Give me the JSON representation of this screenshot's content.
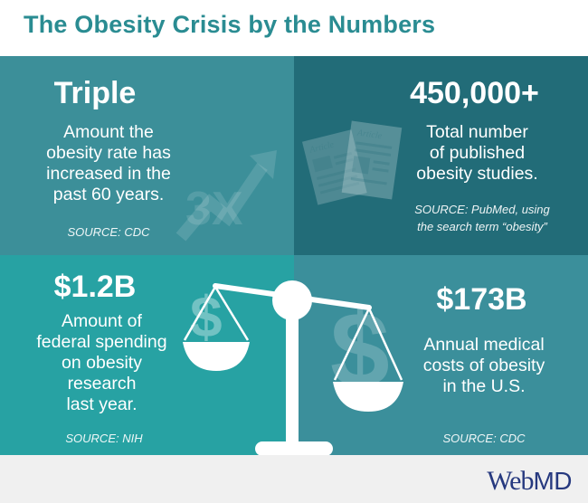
{
  "title": "The Obesity Crisis by the Numbers",
  "panels": [
    {
      "stat": "Triple",
      "description": [
        "Amount the",
        "obesity rate has",
        "increased in the",
        "past 60 years."
      ],
      "source": [
        "SOURCE: CDC"
      ],
      "graphic_text": "3X",
      "icon": "trend-arrow-icon"
    },
    {
      "stat": "450,000+",
      "description": [
        "Total number",
        "of published",
        "obesity studies."
      ],
      "source": [
        "SOURCE: PubMed, using",
        "the search term “obesity”"
      ],
      "graphic_labels": [
        "Article",
        "Article"
      ],
      "icon": "documents-icon"
    },
    {
      "stat": "$1.2B",
      "description": [
        "Amount of",
        "federal spending",
        "on obesity",
        "research",
        "last year."
      ],
      "source": [
        "SOURCE: NIH"
      ],
      "graphic_text": "$",
      "icon": "dollar-icon"
    },
    {
      "stat": "$173B",
      "description": [
        "Annual medical",
        "costs of obesity",
        "in the U.S."
      ],
      "source": [
        "SOURCE: CDC"
      ],
      "graphic_text": "$",
      "icon": "dollar-icon"
    }
  ],
  "balance_icon": "balance-scale-icon",
  "logo": {
    "part1": "Web",
    "part2": "MD"
  },
  "colors": {
    "title": "#2a8c92",
    "panel1": "#3c8f99",
    "panel2": "#226c78",
    "panel3": "#27a2a3",
    "panel4": "#3b8f9b",
    "logo": "#26397f",
    "footer": "#f0f0f0"
  }
}
